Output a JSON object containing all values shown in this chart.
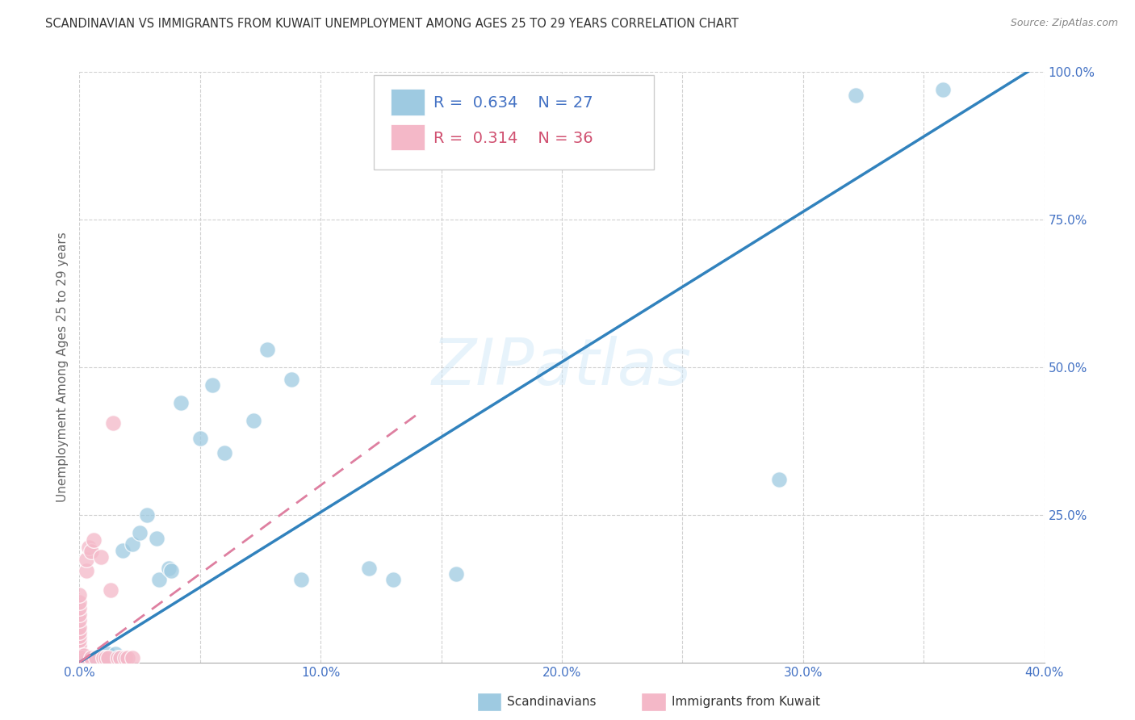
{
  "title": "SCANDINAVIAN VS IMMIGRANTS FROM KUWAIT UNEMPLOYMENT AMONG AGES 25 TO 29 YEARS CORRELATION CHART",
  "source": "Source: ZipAtlas.com",
  "ylabel": "Unemployment Among Ages 25 to 29 years",
  "xlim": [
    0.0,
    0.4
  ],
  "ylim": [
    0.0,
    1.0
  ],
  "xticks": [
    0.0,
    0.05,
    0.1,
    0.15,
    0.2,
    0.25,
    0.3,
    0.35,
    0.4
  ],
  "xticklabels": [
    "0.0%",
    "",
    "10.0%",
    "",
    "20.0%",
    "",
    "30.0%",
    "",
    "40.0%"
  ],
  "yticks": [
    0.0,
    0.25,
    0.5,
    0.75,
    1.0
  ],
  "yticklabels": [
    "",
    "25.0%",
    "50.0%",
    "75.0%",
    "100.0%"
  ],
  "blue_R": 0.634,
  "blue_N": 27,
  "pink_R": 0.314,
  "pink_N": 36,
  "blue_color": "#9ecae1",
  "pink_color": "#f4b8c8",
  "blue_line_color": "#3182bd",
  "pink_line_color": "#de7fa0",
  "blue_dots": [
    [
      0.003,
      0.008
    ],
    [
      0.006,
      0.008
    ],
    [
      0.01,
      0.01
    ],
    [
      0.012,
      0.015
    ],
    [
      0.015,
      0.015
    ],
    [
      0.018,
      0.19
    ],
    [
      0.022,
      0.2
    ],
    [
      0.025,
      0.22
    ],
    [
      0.028,
      0.25
    ],
    [
      0.032,
      0.21
    ],
    [
      0.033,
      0.14
    ],
    [
      0.037,
      0.16
    ],
    [
      0.038,
      0.155
    ],
    [
      0.042,
      0.44
    ],
    [
      0.05,
      0.38
    ],
    [
      0.055,
      0.47
    ],
    [
      0.06,
      0.355
    ],
    [
      0.072,
      0.41
    ],
    [
      0.078,
      0.53
    ],
    [
      0.088,
      0.48
    ],
    [
      0.092,
      0.14
    ],
    [
      0.12,
      0.16
    ],
    [
      0.13,
      0.14
    ],
    [
      0.156,
      0.15
    ],
    [
      0.29,
      0.31
    ],
    [
      0.322,
      0.96
    ],
    [
      0.358,
      0.97
    ]
  ],
  "pink_dots": [
    [
      0.0,
      0.006
    ],
    [
      0.0,
      0.01
    ],
    [
      0.0,
      0.014
    ],
    [
      0.0,
      0.018
    ],
    [
      0.0,
      0.022
    ],
    [
      0.0,
      0.026
    ],
    [
      0.0,
      0.03
    ],
    [
      0.0,
      0.038
    ],
    [
      0.0,
      0.044
    ],
    [
      0.0,
      0.052
    ],
    [
      0.0,
      0.06
    ],
    [
      0.0,
      0.072
    ],
    [
      0.0,
      0.082
    ],
    [
      0.0,
      0.092
    ],
    [
      0.0,
      0.102
    ],
    [
      0.0,
      0.115
    ],
    [
      0.001,
      0.008
    ],
    [
      0.002,
      0.012
    ],
    [
      0.003,
      0.155
    ],
    [
      0.003,
      0.175
    ],
    [
      0.004,
      0.195
    ],
    [
      0.005,
      0.008
    ],
    [
      0.005,
      0.188
    ],
    [
      0.006,
      0.208
    ],
    [
      0.007,
      0.008
    ],
    [
      0.009,
      0.178
    ],
    [
      0.01,
      0.008
    ],
    [
      0.011,
      0.008
    ],
    [
      0.012,
      0.008
    ],
    [
      0.013,
      0.122
    ],
    [
      0.014,
      0.405
    ],
    [
      0.016,
      0.008
    ],
    [
      0.017,
      0.008
    ],
    [
      0.019,
      0.008
    ],
    [
      0.02,
      0.008
    ],
    [
      0.022,
      0.008
    ]
  ],
  "blue_line_x": [
    0.0,
    0.395
  ],
  "blue_line_y": [
    0.0,
    1.005
  ],
  "pink_line_x": [
    0.0,
    0.14
  ],
  "pink_line_y": [
    0.0,
    0.42
  ],
  "watermark": "ZIPatlas",
  "background_color": "#ffffff",
  "grid_color": "#d0d0d0",
  "title_color": "#333333",
  "axis_label_color": "#666666",
  "tick_color": "#4472c4",
  "legend_blue_color": "#4472c4",
  "legend_pink_color": "#d05070"
}
